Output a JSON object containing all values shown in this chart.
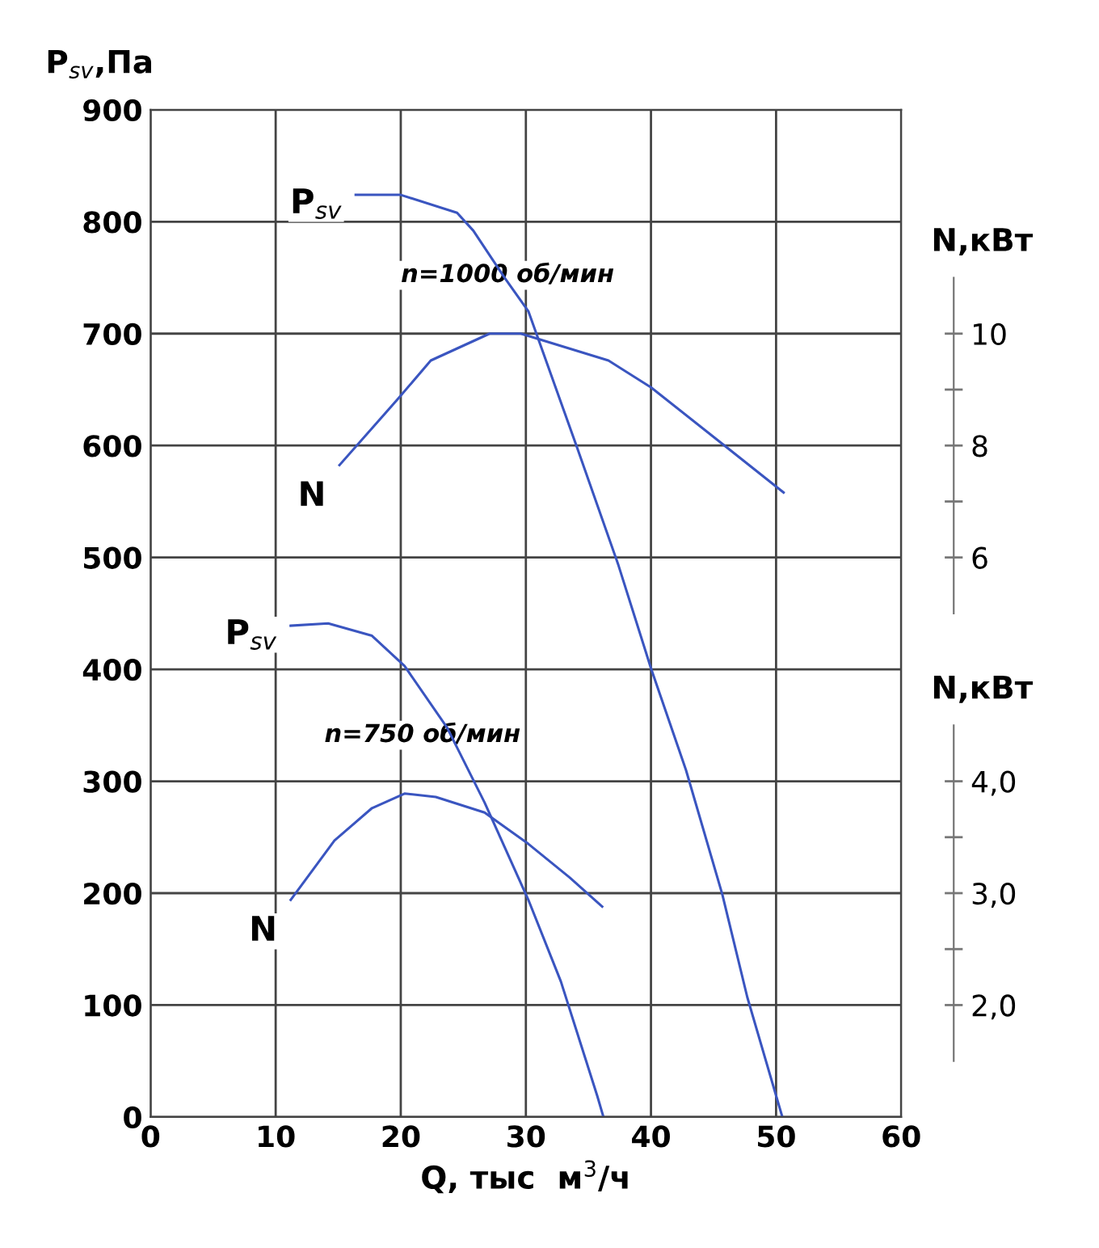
{
  "chart_data": {
    "type": "line",
    "xlabel": "Q, тыс  м$^{3}$/ч",
    "ylabel": "P$_{sv}$,Па",
    "y2label": "N,кВт",
    "y3label": "N,кВт",
    "xlim": [
      0,
      60
    ],
    "xticks": [
      0,
      10,
      20,
      30,
      40,
      50,
      60
    ],
    "ylim": [
      0,
      900
    ],
    "yticks": [
      0,
      100,
      200,
      300,
      400,
      500,
      600,
      700,
      800,
      900
    ],
    "y2lim": [
      -4,
      14
    ],
    "y2ticks": [
      6,
      8,
      10
    ],
    "y3lim": [
      1,
      10
    ],
    "y3ticks": [
      {
        "value": 2,
        "label": "2,0"
      },
      {
        "value": 3,
        "label": "3,0"
      },
      {
        "value": 4,
        "label": "4,0"
      }
    ],
    "grid": true,
    "legend": false,
    "marker": "none",
    "line_style": "solid",
    "annotations": [
      "n=1000 об/мин",
      "n=750 об/мин"
    ],
    "series": [
      {
        "name": "P$_{sv}$",
        "color": "#3a55c0",
        "x": [
          16.4,
          20.0,
          24.5,
          25.8,
          28.3,
          30.2,
          34.1,
          37.4,
          40.0,
          42.8,
          45.7,
          47.7,
          50.5
        ],
        "values": [
          824,
          824,
          808,
          792,
          750,
          720,
          598,
          493,
          401,
          310,
          199,
          107,
          0
        ]
      },
      {
        "name": "N",
        "color": "#3a55c0",
        "axis": "y2",
        "x": [
          15.1,
          19.8,
          22.4,
          27.1,
          29.6,
          36.6,
          40.0,
          46.1,
          50.6
        ],
        "values": [
          7.65,
          8.84,
          9.52,
          10.0,
          10.0,
          9.52,
          9.04,
          7.96,
          7.16
        ]
      },
      {
        "name": "P$_{sv}$",
        "color": "#3a55c0",
        "x": [
          11.2,
          14.2,
          17.7,
          20.3,
          23.7,
          26.7,
          30.2,
          32.8,
          35.7,
          36.2
        ],
        "values": [
          439,
          441,
          430,
          403,
          348,
          281,
          194,
          121,
          19,
          0
        ]
      },
      {
        "name": "N",
        "color": "#3a55c0",
        "axis": "y3",
        "x": [
          11.2,
          14.7,
          17.7,
          20.3,
          22.8,
          26.7,
          30.2,
          33.5,
          36.1
        ],
        "values": [
          2.94,
          3.47,
          3.76,
          3.89,
          3.86,
          3.72,
          3.44,
          3.14,
          2.88
        ]
      }
    ]
  }
}
